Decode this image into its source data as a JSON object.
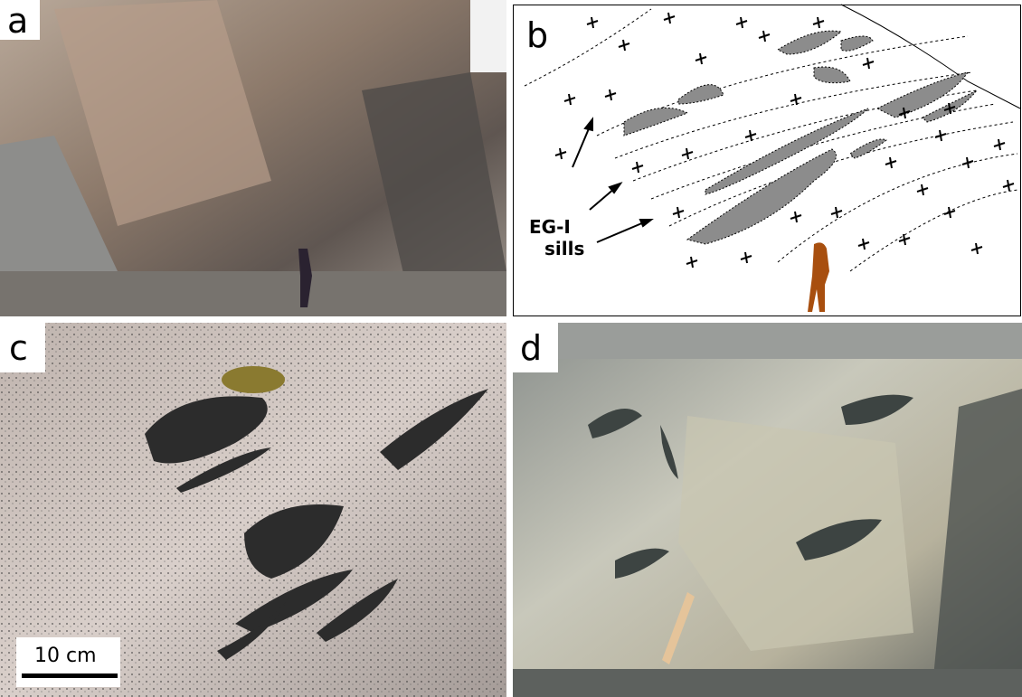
{
  "panels": [
    {
      "label": "a"
    },
    {
      "label": "b",
      "annotation": [
        "EG-I",
        "sills"
      ]
    },
    {
      "label": "c",
      "scale_bar": "10 cm"
    },
    {
      "label": "d"
    }
  ]
}
